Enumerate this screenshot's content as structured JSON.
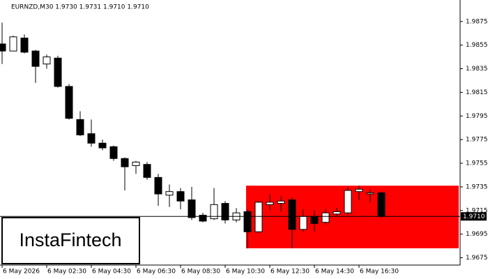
{
  "chart_data": {
    "type": "candlestick",
    "title": "EURNZD,M30  1.9730 1.9731 1.9710 1.9710",
    "logo": "InstaFintech",
    "categories": [
      "6 May 2026",
      null,
      null,
      null,
      "6 May 02:30",
      null,
      null,
      null,
      "6 May 04:30",
      null,
      null,
      null,
      "6 May 06:30",
      null,
      null,
      null,
      "6 May 08:30",
      null,
      null,
      null,
      "6 May 10:30",
      null,
      null,
      null,
      "6 May 12:30",
      null,
      null,
      null,
      "6 May 14:30",
      null,
      null,
      null,
      "6 May 16:30",
      null,
      null
    ],
    "open": [
      1.9856,
      1.985,
      1.9861,
      1.985,
      1.9839,
      1.9844,
      1.982,
      1.9792,
      1.978,
      1.9772,
      1.9769,
      1.9759,
      1.9753,
      1.9754,
      1.9743,
      1.9728,
      1.9731,
      1.9724,
      1.9711,
      1.9708,
      1.9721,
      1.9707,
      1.9714,
      1.9697,
      1.972,
      1.9721,
      1.9724,
      1.9699,
      1.971,
      1.9705,
      1.9712,
      1.9713,
      1.9731,
      1.9729,
      1.973
    ],
    "high": [
      1.9874,
      1.9863,
      1.9864,
      1.9851,
      1.9847,
      1.9846,
      1.9822,
      1.9799,
      1.9792,
      1.9775,
      1.977,
      1.976,
      1.9757,
      1.9756,
      1.9746,
      1.9737,
      1.9734,
      1.9735,
      1.9713,
      1.9734,
      1.9723,
      1.9717,
      1.9716,
      1.9723,
      1.9729,
      1.9727,
      1.9726,
      1.9716,
      1.9715,
      1.9716,
      1.9717,
      1.9735,
      1.9736,
      1.9733,
      1.9731
    ],
    "low": [
      1.9839,
      1.985,
      1.9848,
      1.9823,
      1.9835,
      1.9819,
      1.9792,
      1.9778,
      1.9769,
      1.9766,
      1.9757,
      1.9732,
      1.9746,
      1.9741,
      1.9719,
      1.9718,
      1.9716,
      1.9707,
      1.9705,
      1.9707,
      1.9704,
      1.9705,
      1.9683,
      1.9696,
      1.9715,
      1.9714,
      1.9683,
      1.9697,
      1.9697,
      1.9703,
      1.971,
      1.9711,
      1.9724,
      1.9722,
      1.9709
    ],
    "close": [
      1.985,
      1.9862,
      1.9849,
      1.9837,
      1.9845,
      1.982,
      1.9793,
      1.9779,
      1.9772,
      1.9768,
      1.9759,
      1.9752,
      1.9756,
      1.9743,
      1.9729,
      1.9731,
      1.9723,
      1.9709,
      1.9706,
      1.972,
      1.9707,
      1.9713,
      1.9697,
      1.9722,
      1.9722,
      1.9723,
      1.9699,
      1.971,
      1.9704,
      1.9713,
      1.9714,
      1.9732,
      1.9733,
      1.973,
      1.971
    ],
    "up_color": "#ffffff",
    "down_color": "#000000",
    "zone": {
      "high": 1.9736,
      "low": 1.9683,
      "color": "#ff0000"
    },
    "last_price": {
      "value": 1.971,
      "label": "1.9710"
    },
    "ylim": [
      1.967,
      1.9892
    ],
    "yticks": [
      1.9875,
      1.9855,
      1.9835,
      1.9815,
      1.9795,
      1.9775,
      1.9755,
      1.9735,
      1.9715,
      1.9695,
      1.9675
    ]
  }
}
